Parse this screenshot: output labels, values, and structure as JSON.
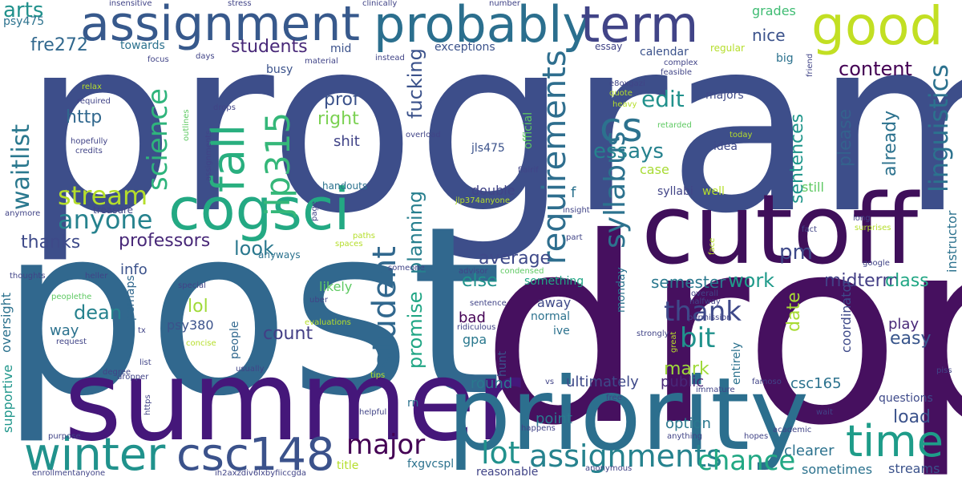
{
  "words": [
    {
      "text": "program"
    },
    {
      "text": "post"
    },
    {
      "text": "drop"
    },
    {
      "text": "summer"
    },
    {
      "text": "cutoff"
    },
    {
      "text": "priority"
    },
    {
      "text": "assignment"
    },
    {
      "text": "probably"
    },
    {
      "text": "term"
    },
    {
      "text": "cogsci"
    },
    {
      "text": "good"
    },
    {
      "text": "winter"
    },
    {
      "text": "csc148"
    },
    {
      "text": "time"
    },
    {
      "text": "lot"
    },
    {
      "text": "assignments"
    },
    {
      "text": "requirements"
    },
    {
      "text": "fall"
    },
    {
      "text": "cs"
    },
    {
      "text": "student"
    },
    {
      "text": "chance"
    },
    {
      "text": "linguistics"
    },
    {
      "text": "waitlist"
    },
    {
      "text": "major"
    },
    {
      "text": "syllabus"
    },
    {
      "text": "jlp315"
    },
    {
      "text": "science"
    },
    {
      "text": "anyone"
    },
    {
      "text": "thank"
    },
    {
      "text": "bit"
    },
    {
      "text": "stream"
    },
    {
      "text": "arts"
    },
    {
      "text": "edit"
    },
    {
      "text": "essays"
    },
    {
      "text": "content"
    },
    {
      "text": "students"
    },
    {
      "text": "fucking"
    },
    {
      "text": "planning"
    },
    {
      "text": "promise"
    },
    {
      "text": "professors"
    },
    {
      "text": "thanks"
    },
    {
      "text": "look"
    },
    {
      "text": "average"
    },
    {
      "text": "count"
    },
    {
      "text": "dean"
    },
    {
      "text": "lol"
    },
    {
      "text": "prof"
    },
    {
      "text": "http"
    },
    {
      "text": "right"
    },
    {
      "text": "shit"
    },
    {
      "text": "fre272"
    },
    {
      "text": "nice"
    },
    {
      "text": "grades"
    },
    {
      "text": "sentences"
    },
    {
      "text": "already"
    },
    {
      "text": "please"
    },
    {
      "text": "midterm"
    },
    {
      "text": "class"
    },
    {
      "text": "semester"
    },
    {
      "text": "work"
    },
    {
      "text": "pm"
    },
    {
      "text": "else"
    },
    {
      "text": "mark"
    },
    {
      "text": "date"
    },
    {
      "text": "easy"
    },
    {
      "text": "load"
    },
    {
      "text": "play"
    },
    {
      "text": "round"
    },
    {
      "text": "public"
    },
    {
      "text": "ultimately"
    },
    {
      "text": "point"
    },
    {
      "text": "option"
    },
    {
      "text": "psy380"
    },
    {
      "text": "way"
    },
    {
      "text": "info"
    },
    {
      "text": "oversight"
    },
    {
      "text": "supportive"
    },
    {
      "text": "likely"
    },
    {
      "text": "bad"
    },
    {
      "text": "gpa"
    },
    {
      "text": "away"
    },
    {
      "text": "ive"
    },
    {
      "text": "normal"
    },
    {
      "text": "monday"
    },
    {
      "text": "hunt"
    },
    {
      "text": "coordinator"
    },
    {
      "text": "csc165"
    },
    {
      "text": "questions"
    },
    {
      "text": "streams"
    },
    {
      "text": "clearer"
    },
    {
      "text": "sometimes"
    },
    {
      "text": "instructor"
    },
    {
      "text": "reasonable"
    },
    {
      "text": "fxgvcspl"
    },
    {
      "text": "title"
    },
    {
      "text": "rn"
    },
    {
      "text": "entirely"
    },
    {
      "text": "perhaps"
    },
    {
      "text": "people"
    },
    {
      "text": "anyways"
    },
    {
      "text": "something"
    },
    {
      "text": "double"
    },
    {
      "text": "f"
    },
    {
      "text": "syllabi"
    },
    {
      "text": "well"
    },
    {
      "text": "still"
    },
    {
      "text": "case"
    },
    {
      "text": "idea"
    },
    {
      "text": "majors"
    },
    {
      "text": "calendar"
    },
    {
      "text": "regular"
    },
    {
      "text": "big"
    },
    {
      "text": "exceptions"
    },
    {
      "text": "mid"
    },
    {
      "text": "busy"
    },
    {
      "text": "towards"
    },
    {
      "text": "psy475"
    },
    {
      "text": "jls475"
    },
    {
      "text": "official"
    },
    {
      "text": "handouts"
    },
    {
      "text": "treasure"
    },
    {
      "text": "essay"
    },
    {
      "text": "focus"
    },
    {
      "text": "insensitive"
    },
    {
      "text": "stress"
    },
    {
      "text": "clinically"
    },
    {
      "text": "number"
    },
    {
      "text": "days"
    },
    {
      "text": "material"
    },
    {
      "text": "instead"
    },
    {
      "text": "complex"
    },
    {
      "text": "feasible"
    },
    {
      "text": "friend"
    },
    {
      "text": "e8oxgazi"
    },
    {
      "text": "quote"
    },
    {
      "text": "heavy"
    },
    {
      "text": "retarded"
    },
    {
      "text": "today"
    },
    {
      "text": "flairif"
    },
    {
      "text": "relax"
    },
    {
      "text": "required"
    },
    {
      "text": "hopefully"
    },
    {
      "text": "credits"
    },
    {
      "text": "outlines"
    },
    {
      "text": "drops"
    },
    {
      "text": "assignments"
    },
    {
      "text": "overload"
    },
    {
      "text": "jlp374anyone"
    },
    {
      "text": "insight"
    },
    {
      "text": "part"
    },
    {
      "text": "fact"
    },
    {
      "text": "face"
    },
    {
      "text": "long"
    },
    {
      "text": "surprises"
    },
    {
      "text": "google"
    },
    {
      "text": "anymore"
    },
    {
      "text": "page"
    },
    {
      "text": "spaces"
    },
    {
      "text": "paths"
    },
    {
      "text": "someone"
    },
    {
      "text": "advisor"
    },
    {
      "text": "condensed"
    },
    {
      "text": "overall"
    },
    {
      "text": "halfway"
    },
    {
      "text": "permission"
    },
    {
      "text": "thoughts"
    },
    {
      "text": "heller"
    },
    {
      "text": "peoplethe"
    },
    {
      "text": "special"
    },
    {
      "text": "uber"
    },
    {
      "text": "sentence"
    },
    {
      "text": "ridiculous"
    },
    {
      "text": "evaluations"
    },
    {
      "text": "concise"
    },
    {
      "text": "tx"
    },
    {
      "text": "request"
    },
    {
      "text": "strongly"
    },
    {
      "text": "great"
    },
    {
      "text": "degree"
    },
    {
      "text": "list"
    },
    {
      "text": "dropper"
    },
    {
      "text": "usually"
    },
    {
      "text": "tips"
    },
    {
      "text": "vs"
    },
    {
      "text": "https"
    },
    {
      "text": "immature"
    },
    {
      "text": "famoso"
    },
    {
      "text": "free"
    },
    {
      "text": "helpful"
    },
    {
      "text": "happens"
    },
    {
      "text": "academic"
    },
    {
      "text": "wait"
    },
    {
      "text": "hopes"
    },
    {
      "text": "anything"
    },
    {
      "text": "purpose"
    },
    {
      "text": "piss"
    },
    {
      "text": "enrollmentanyone"
    },
    {
      "text": "ih2axzdiv6lxbyfiiccgda"
    },
    {
      "text": "anonymous"
    }
  ]
}
